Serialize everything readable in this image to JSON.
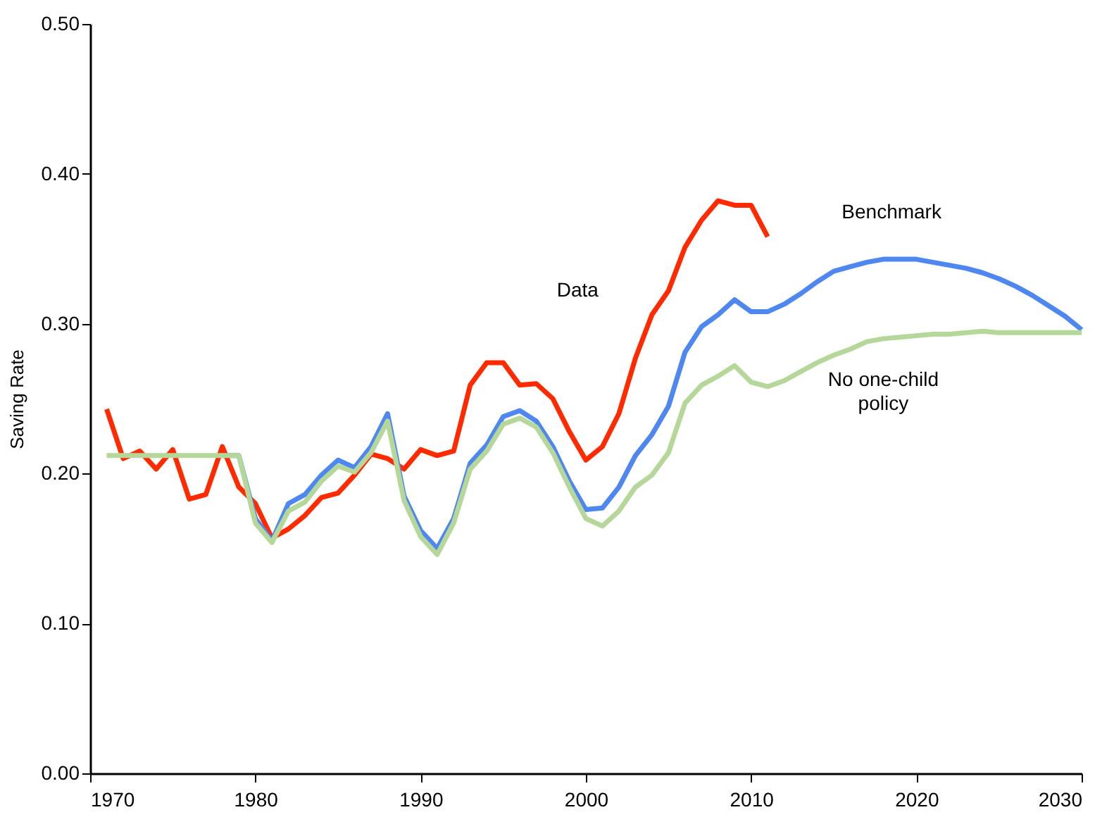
{
  "chart_data": {
    "type": "line",
    "ylabel": "Saving Rate",
    "xlim": [
      1970,
      2030
    ],
    "xticks": [
      1970,
      1980,
      1990,
      2000,
      2010,
      2020,
      2030
    ],
    "ylim": [
      0,
      0.5
    ],
    "yticks": [
      {
        "value": 0,
        "label": "0.00"
      },
      {
        "value": 0.1,
        "label": "0.10"
      },
      {
        "value": 0.2,
        "label": "0.20"
      },
      {
        "value": 0.3,
        "label": "0.30"
      },
      {
        "value": 0.4,
        "label": "0.40"
      },
      {
        "value": 0.5,
        "label": "0.50"
      }
    ],
    "grid": false,
    "marker": "none",
    "line_style": "solid",
    "series": [
      {
        "name": "Data",
        "color": "#ff2a00",
        "x": [
          1971,
          1972,
          1973,
          1974,
          1975,
          1976,
          1977,
          1978,
          1979,
          1980,
          1981,
          1982,
          1983,
          1984,
          1985,
          1986,
          1987,
          1988,
          1989,
          1990,
          1991,
          1992,
          1993,
          1994,
          1995,
          1996,
          1997,
          1998,
          1999,
          2000,
          2001,
          2002,
          2003,
          2004,
          2005,
          2006,
          2007,
          2008,
          2009,
          2010,
          2011
        ],
        "values": [
          0.243,
          0.21,
          0.215,
          0.203,
          0.216,
          0.183,
          0.186,
          0.218,
          0.191,
          0.18,
          0.157,
          0.163,
          0.172,
          0.184,
          0.187,
          0.199,
          0.213,
          0.21,
          0.203,
          0.216,
          0.212,
          0.215,
          0.259,
          0.274,
          0.274,
          0.259,
          0.26,
          0.25,
          0.228,
          0.209,
          0.218,
          0.24,
          0.277,
          0.306,
          0.322,
          0.351,
          0.369,
          0.382,
          0.379,
          0.379,
          0.358
        ]
      },
      {
        "name": "Benchmark",
        "color": "#4f87f0",
        "x": [
          1978,
          1979,
          1980,
          1981,
          1982,
          1983,
          1984,
          1985,
          1986,
          1987,
          1988,
          1989,
          1990,
          1991,
          1992,
          1993,
          1994,
          1995,
          1996,
          1997,
          1998,
          1999,
          2000,
          2001,
          2002,
          2003,
          2004,
          2005,
          2006,
          2007,
          2008,
          2009,
          2010,
          2011,
          2012,
          2013,
          2014,
          2015,
          2016,
          2017,
          2018,
          2019,
          2020,
          2021,
          2022,
          2023,
          2024,
          2025,
          2026,
          2027,
          2028,
          2029,
          2030
        ],
        "values": [
          0.212,
          0.212,
          0.17,
          0.155,
          0.18,
          0.186,
          0.199,
          0.209,
          0.204,
          0.218,
          0.24,
          0.185,
          0.162,
          0.15,
          0.17,
          0.207,
          0.219,
          0.238,
          0.242,
          0.235,
          0.218,
          0.195,
          0.176,
          0.177,
          0.191,
          0.212,
          0.226,
          0.245,
          0.281,
          0.298,
          0.306,
          0.316,
          0.308,
          0.308,
          0.313,
          0.32,
          0.328,
          0.335,
          0.338,
          0.341,
          0.343,
          0.343,
          0.343,
          0.341,
          0.339,
          0.337,
          0.334,
          0.33,
          0.325,
          0.319,
          0.312,
          0.305,
          0.296
        ]
      },
      {
        "name": "No one-child policy",
        "color": "#b5d89a",
        "x": [
          1971,
          1972,
          1973,
          1974,
          1975,
          1976,
          1977,
          1978,
          1979,
          1980,
          1981,
          1982,
          1983,
          1984,
          1985,
          1986,
          1987,
          1988,
          1989,
          1990,
          1991,
          1992,
          1993,
          1994,
          1995,
          1996,
          1997,
          1998,
          1999,
          2000,
          2001,
          2002,
          2003,
          2004,
          2005,
          2006,
          2007,
          2008,
          2009,
          2010,
          2011,
          2012,
          2013,
          2014,
          2015,
          2016,
          2017,
          2018,
          2019,
          2020,
          2021,
          2022,
          2023,
          2024,
          2025,
          2026,
          2027,
          2028,
          2029,
          2030
        ],
        "values": [
          0.212,
          0.212,
          0.212,
          0.212,
          0.212,
          0.212,
          0.212,
          0.212,
          0.212,
          0.167,
          0.154,
          0.175,
          0.181,
          0.195,
          0.205,
          0.201,
          0.214,
          0.235,
          0.182,
          0.158,
          0.146,
          0.167,
          0.203,
          0.215,
          0.233,
          0.237,
          0.231,
          0.214,
          0.191,
          0.17,
          0.165,
          0.175,
          0.191,
          0.199,
          0.214,
          0.247,
          0.259,
          0.265,
          0.272,
          0.261,
          0.258,
          0.262,
          0.268,
          0.274,
          0.279,
          0.283,
          0.288,
          0.29,
          0.291,
          0.292,
          0.293,
          0.293,
          0.294,
          0.295,
          0.294,
          0.294,
          0.294,
          0.294,
          0.294,
          0.294
        ]
      }
    ]
  }
}
